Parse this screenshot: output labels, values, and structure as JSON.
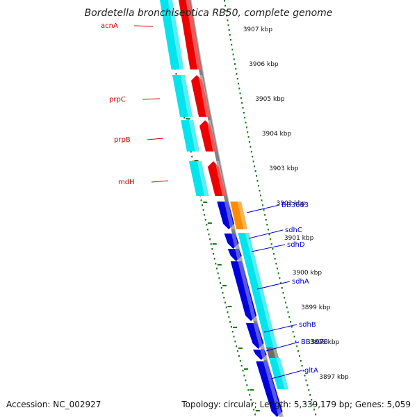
{
  "title": "Bordetella bronchiseptica RB50, complete genome",
  "footer": {
    "accession": "Accession: NC_002927",
    "summary": "Topology: circular; Length: 5,339,179 bp; Genes: 5,059"
  },
  "colors": {
    "background": "#ffffff",
    "backbone": "#808080",
    "tick_major": "#1a7a1a",
    "tick_minor": "#1a7a1a",
    "cds_cyan": "#00e5ee",
    "gene_red": "#ee0000",
    "gene_blue": "#0000dd",
    "gene_orange": "#ff8c00",
    "gene_grey": "#6b6b6b",
    "label_red": "#cc0000",
    "label_blue": "#0000cc"
  },
  "kbp_labels": [
    "3907 kbp",
    "3906 kbp",
    "3905 kbp",
    "3904 kbp",
    "3903 kbp",
    "3902 kbp",
    "3901 kbp",
    "3900 kbp",
    "3899 kbp",
    "3898 kbp",
    "3897 kbp"
  ],
  "genes": [
    {
      "name": "acnA",
      "color": "red"
    },
    {
      "name": "prpC",
      "color": "red"
    },
    {
      "name": "prpB",
      "color": "red"
    },
    {
      "name": "mdH",
      "color": "red"
    },
    {
      "name": "BB3683",
      "color": "blue"
    },
    {
      "name": "sdhC",
      "color": "blue"
    },
    {
      "name": "sdhD",
      "color": "blue"
    },
    {
      "name": "sdhA",
      "color": "blue"
    },
    {
      "name": "sdhB",
      "color": "blue"
    },
    {
      "name": "BB3678",
      "color": "blue"
    },
    {
      "name": "gltA",
      "color": "blue"
    }
  ]
}
